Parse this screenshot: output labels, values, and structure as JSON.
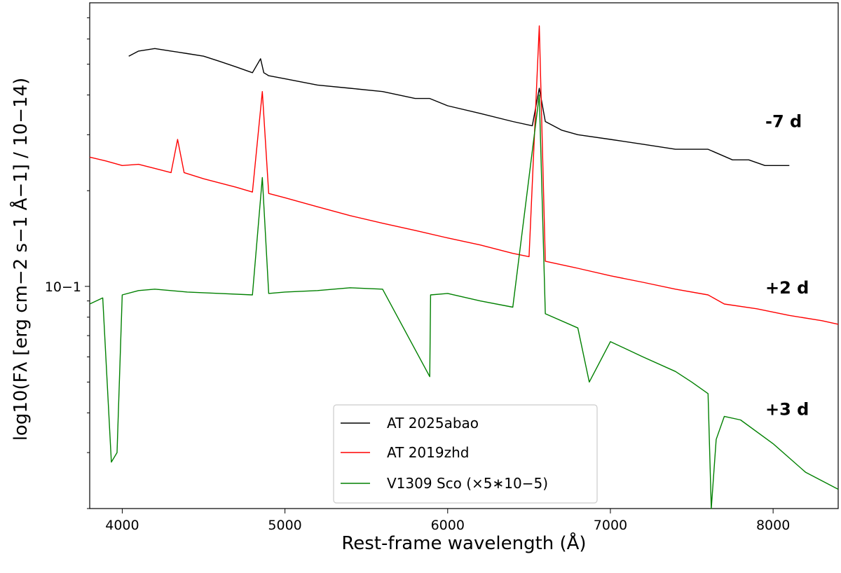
{
  "chart_data": {
    "type": "line",
    "xlabel": "Rest-frame wavelength (Å)",
    "ylabel": "log10(Fλ [erg cm−2 s−1 Å−1] / 10−14)",
    "xlim": [
      3800,
      8400
    ],
    "ylim": [
      0.02,
      0.78
    ],
    "y_scale": "log",
    "grid": false,
    "legend_position": "bottom-center",
    "x_ticks": [
      4000,
      5000,
      6000,
      7000,
      8000
    ],
    "y_ticks": [
      {
        "value": 0.1,
        "label": "10−1"
      }
    ],
    "epoch_labels": [
      {
        "text": "-7 d",
        "y": 0.33
      },
      {
        "text": "+2 d",
        "y": 0.099
      },
      {
        "text": "+3 d",
        "y": 0.041
      }
    ],
    "series": [
      {
        "name": "AT 2025abao",
        "color": "#000000",
        "x": [
          4040,
          4100,
          4200,
          4300,
          4400,
          4500,
          4600,
          4700,
          4800,
          4850,
          4870,
          4900,
          5000,
          5200,
          5400,
          5600,
          5800,
          5890,
          6000,
          6200,
          6400,
          6520,
          6563,
          6600,
          6700,
          6800,
          7000,
          7200,
          7400,
          7600,
          7750,
          7850,
          7950,
          8100
        ],
        "y": [
          0.53,
          0.55,
          0.56,
          0.55,
          0.54,
          0.53,
          0.51,
          0.49,
          0.47,
          0.52,
          0.47,
          0.46,
          0.45,
          0.43,
          0.42,
          0.41,
          0.39,
          0.39,
          0.37,
          0.35,
          0.33,
          0.32,
          0.42,
          0.33,
          0.31,
          0.3,
          0.29,
          0.28,
          0.27,
          0.27,
          0.25,
          0.25,
          0.24,
          0.24
        ]
      },
      {
        "name": "AT 2019zhd",
        "color": "#ff0000",
        "x": [
          3800,
          3900,
          4000,
          4100,
          4200,
          4300,
          4340,
          4380,
          4500,
          4700,
          4800,
          4861,
          4900,
          5000,
          5200,
          5400,
          5600,
          5800,
          6000,
          6200,
          6400,
          6500,
          6563,
          6600,
          6800,
          7000,
          7200,
          7400,
          7600,
          7700,
          7900,
          8100,
          8300,
          8400
        ],
        "y": [
          0.255,
          0.248,
          0.24,
          0.242,
          0.235,
          0.228,
          0.29,
          0.228,
          0.218,
          0.205,
          0.198,
          0.41,
          0.196,
          0.19,
          0.178,
          0.167,
          0.158,
          0.15,
          0.142,
          0.135,
          0.127,
          0.124,
          0.66,
          0.12,
          0.114,
          0.108,
          0.103,
          0.098,
          0.094,
          0.088,
          0.085,
          0.081,
          0.078,
          0.076
        ]
      },
      {
        "name": "V1309 Sco (×5∗10−5)",
        "color": "#008000",
        "x": [
          3800,
          3880,
          3933,
          3968,
          4000,
          4100,
          4200,
          4400,
          4600,
          4800,
          4861,
          4900,
          5000,
          5200,
          5400,
          5600,
          5890,
          5895,
          6000,
          6200,
          6400,
          6563,
          6600,
          6800,
          6870,
          7000,
          7200,
          7400,
          7500,
          7600,
          7620,
          7650,
          7700,
          7800,
          8000,
          8200,
          8400
        ],
        "y": [
          0.088,
          0.092,
          0.028,
          0.03,
          0.094,
          0.097,
          0.098,
          0.096,
          0.095,
          0.094,
          0.22,
          0.095,
          0.096,
          0.097,
          0.099,
          0.098,
          0.052,
          0.094,
          0.095,
          0.09,
          0.086,
          0.4,
          0.082,
          0.074,
          0.05,
          0.067,
          0.06,
          0.054,
          0.05,
          0.046,
          0.02,
          0.033,
          0.039,
          0.038,
          0.032,
          0.026,
          0.023
        ]
      }
    ]
  }
}
